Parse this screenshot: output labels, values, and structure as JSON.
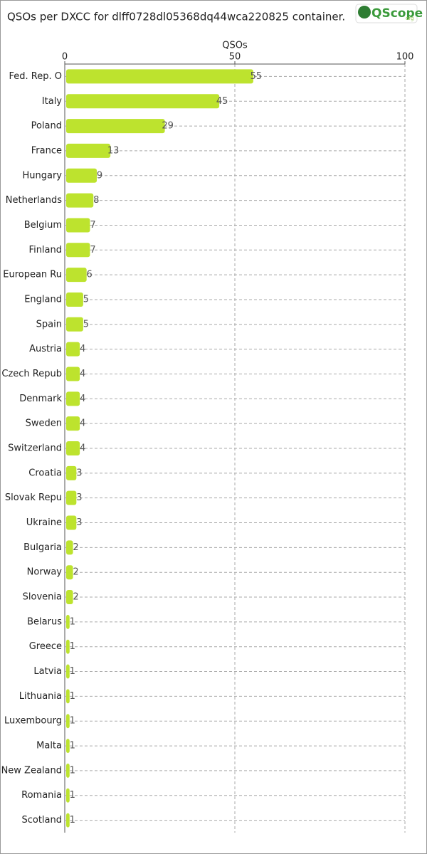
{
  "logo": {
    "name": "QScope",
    "suffix": "org"
  },
  "chart_data": {
    "type": "barh",
    "title": "QSOs per DXCC for dlff0728dl05368dq44wca220825 container.",
    "x_label": "QSOs",
    "categories": [
      "Fed. Rep. O",
      "Italy",
      "Poland",
      "France",
      "Hungary",
      "Netherlands",
      "Belgium",
      "Finland",
      "European Ru",
      "England",
      "Spain",
      "Austria",
      "Czech Repub",
      "Denmark",
      "Sweden",
      "Switzerland",
      "Croatia",
      "Slovak Repu",
      "Ukraine",
      "Bulgaria",
      "Norway",
      "Slovenia",
      "Belarus",
      "Greece",
      "Latvia",
      "Lithuania",
      "Luxembourg",
      "Malta",
      "New Zealand",
      "Romania",
      "Scotland"
    ],
    "values": [
      55,
      45,
      29,
      13,
      9,
      8,
      7,
      7,
      6,
      5,
      5,
      4,
      4,
      4,
      4,
      4,
      3,
      3,
      3,
      2,
      2,
      2,
      1,
      1,
      1,
      1,
      1,
      1,
      1,
      1,
      1
    ],
    "color": "#bde32e",
    "xlim": [
      0,
      100
    ],
    "xticks": [
      0,
      50,
      100
    ],
    "grid": true
  }
}
